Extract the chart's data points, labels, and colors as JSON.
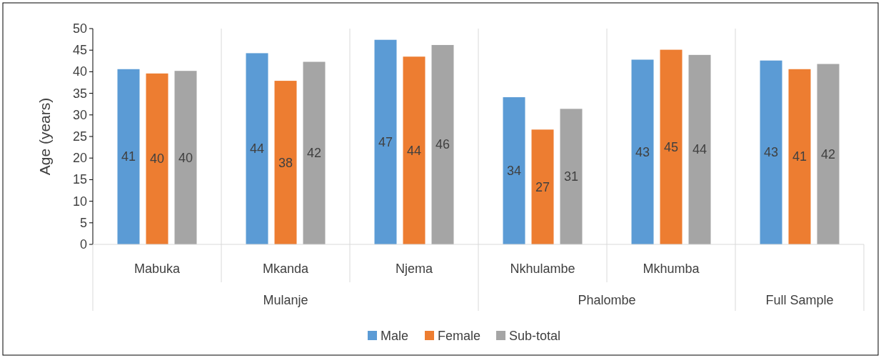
{
  "chart_data": {
    "type": "bar",
    "ylabel": "Age (years)",
    "categories": [
      "Mabuka",
      "Mkanda",
      "Njema",
      "Nkhulambe",
      "Mkhumba",
      null
    ],
    "series": [
      {
        "name": "Male",
        "color": "#5b9bd5",
        "values": [
          40.6,
          44.3,
          47.4,
          34.1,
          42.8,
          42.6
        ],
        "value_labels": [
          "41",
          "44",
          "47",
          "34",
          "43",
          "43"
        ]
      },
      {
        "name": "Female",
        "color": "#ed7d31",
        "values": [
          39.6,
          37.9,
          43.5,
          26.6,
          45.1,
          40.6
        ],
        "value_labels": [
          "40",
          "38",
          "44",
          "27",
          "45",
          "41"
        ]
      },
      {
        "name": "Sub-total",
        "color": "#a5a5a5",
        "values": [
          40.2,
          42.3,
          46.2,
          31.4,
          43.9,
          41.8
        ],
        "value_labels": [
          "40",
          "42",
          "46",
          "31",
          "44",
          "42"
        ]
      }
    ],
    "annotations": [
      "Mulanje",
      "Phalombe",
      "Full Sample"
    ],
    "ylim": [
      0,
      50
    ],
    "yticks": [
      0,
      5,
      10,
      15,
      20,
      25,
      30,
      35,
      40,
      45,
      50
    ],
    "grid": "x",
    "legend": "bottom"
  }
}
